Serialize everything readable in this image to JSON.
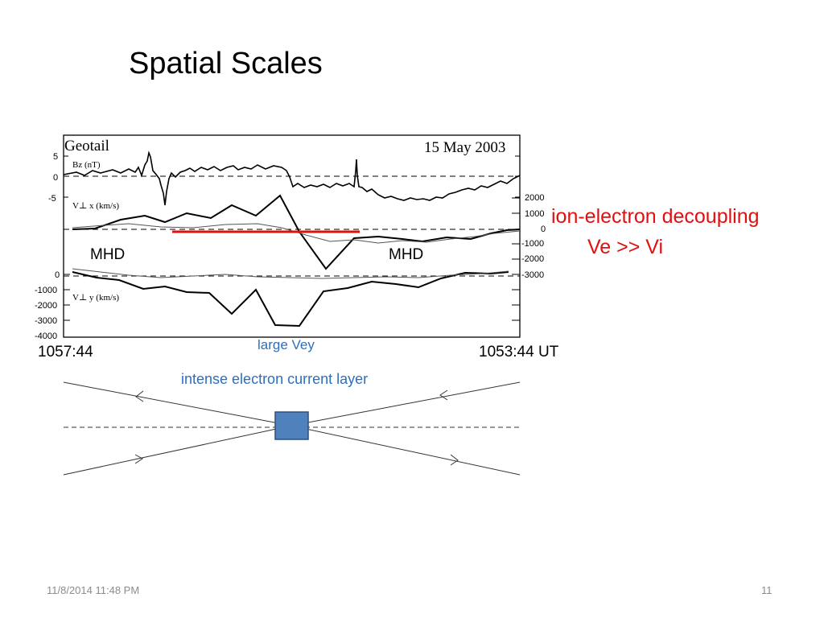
{
  "slide": {
    "title": "Spatial Scales",
    "mhd_left": "MHD",
    "mhd_right": "MHD",
    "decoupling": "ion-electron decoupling",
    "ve_vi": "Ve >> Vi",
    "large_vey": "large Vey",
    "current_layer": "intense electron current layer",
    "time_left": "1057:44",
    "time_right": "1053:44 UT",
    "footer_date": "11/8/2014 11:48 PM",
    "page_number": "11"
  },
  "figure": {
    "mission": "Geotail",
    "date": "15 May 2003",
    "bz_label": "Bz (nT)",
    "vx_label": "V⊥ x (km/s)",
    "vy_label": "V⊥ y (km/s)",
    "bz_ticks": [
      "5",
      "0",
      "-5"
    ],
    "vx_ticks": [
      "2000",
      "1000",
      "0",
      "-1000",
      "-2000",
      "-3000"
    ],
    "vy_ticks": [
      "0",
      "-1000",
      "-2000",
      "-3000",
      "-4000"
    ]
  },
  "colors": {
    "highlight_red": "#e01010",
    "annotation_blue": "#2c6fbf",
    "box_fill": "#4f81bd",
    "box_border": "#2f4f7f"
  }
}
